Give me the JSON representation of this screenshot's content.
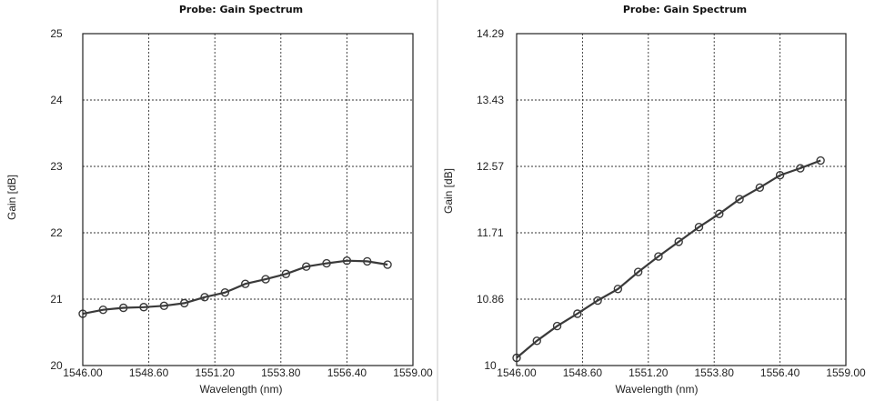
{
  "chart_data": [
    {
      "type": "line",
      "title": "Probe: Gain Spectrum",
      "xlabel": "Wavelength (nm)",
      "ylabel": "Gain [dB]",
      "xlim": [
        1546.0,
        1559.0
      ],
      "ylim": [
        20,
        25
      ],
      "xticks": [
        "1546.00",
        "1548.60",
        "1551.20",
        "1553.80",
        "1556.40",
        "1559.00"
      ],
      "yticks": [
        "20",
        "21",
        "22",
        "23",
        "24",
        "25"
      ],
      "grid": true,
      "marker": "circle",
      "color": "#3a3a3a",
      "series": [
        {
          "x": [
            1546.0,
            1546.8,
            1547.6,
            1548.4,
            1549.2,
            1550.0,
            1550.8,
            1551.6,
            1552.4,
            1553.2,
            1554.0,
            1554.8,
            1555.6,
            1556.4,
            1557.2,
            1558.0
          ],
          "values": [
            20.78,
            20.84,
            20.87,
            20.88,
            20.9,
            20.94,
            21.03,
            21.1,
            21.23,
            21.3,
            21.38,
            21.49,
            21.54,
            21.58,
            21.57,
            21.52
          ]
        }
      ]
    },
    {
      "type": "line",
      "title": "Probe: Gain Spectrum",
      "xlabel": "Wavelength (nm)",
      "ylabel": "Gain [dB]",
      "xlim": [
        1546.0,
        1559.0
      ],
      "ylim": [
        10,
        14.29
      ],
      "xticks": [
        "1546.00",
        "1548.60",
        "1551.20",
        "1553.80",
        "1556.40",
        "1559.00"
      ],
      "yticks": [
        "10",
        "10.86",
        "11.71",
        "12.57",
        "13.43",
        "14.29"
      ],
      "grid": true,
      "marker": "circle",
      "color": "#3a3a3a",
      "series": [
        {
          "x": [
            1546.0,
            1546.8,
            1547.6,
            1548.4,
            1549.2,
            1550.0,
            1550.8,
            1551.6,
            1552.4,
            1553.2,
            1554.0,
            1554.8,
            1555.6,
            1556.4,
            1557.2,
            1558.0
          ],
          "values": [
            10.1,
            10.32,
            10.51,
            10.67,
            10.84,
            10.99,
            11.21,
            11.41,
            11.6,
            11.79,
            11.96,
            12.15,
            12.3,
            12.46,
            12.55,
            12.65
          ]
        }
      ]
    }
  ]
}
